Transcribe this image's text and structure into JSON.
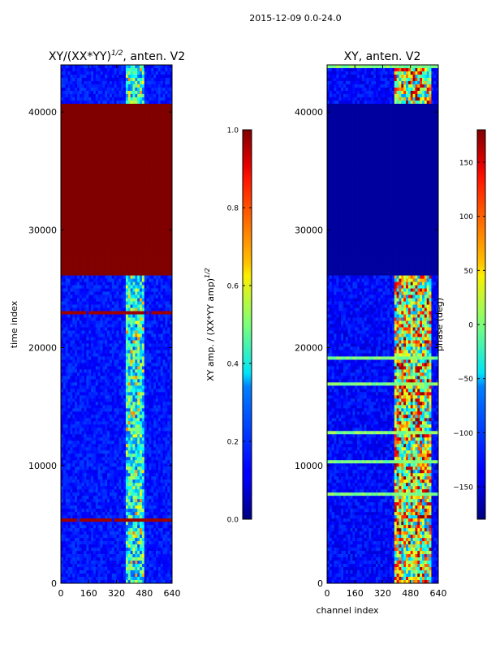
{
  "figure": {
    "suptitle": "2015-12-09 0.0-24.0"
  },
  "chart_data": [
    {
      "type": "heatmap",
      "title": "XY/(XX*YY)",
      "title_exponent": "1/2",
      "title_suffix": ", anten. V2",
      "xlabel": "",
      "ylabel": "time index",
      "xlim": [
        0,
        640
      ],
      "ylim": [
        0,
        44000
      ],
      "xticks": [
        0,
        160,
        320,
        480,
        640
      ],
      "yticks": [
        0,
        10000,
        20000,
        30000,
        40000
      ],
      "colorbar": {
        "label": "XY amp. / (XX*YY amp)",
        "label_exponent": "1/2",
        "range": [
          0.0,
          1.0
        ],
        "ticks": [
          "0.0",
          "0.2",
          "0.4",
          "0.6",
          "0.8",
          "1.0"
        ],
        "colormap": "jet"
      },
      "saturated_block": [
        26200,
        40600
      ],
      "active_channel_band": [
        380,
        480
      ],
      "notes": "background low (~0.1); channels ~380-480 show high values; rows 26200-40600 saturated at 1.0"
    },
    {
      "type": "heatmap",
      "title": "XY, anten. V2",
      "xlabel": "channel index",
      "ylabel": "",
      "xlim": [
        0,
        640
      ],
      "ylim": [
        0,
        44000
      ],
      "xticks": [
        0,
        160,
        320,
        480,
        640
      ],
      "yticks": [
        0,
        10000,
        20000,
        30000,
        40000
      ],
      "colorbar": {
        "label": "phase (deg)",
        "range": [
          -180,
          180
        ],
        "ticks": [
          "−150",
          "−100",
          "−50",
          "0",
          "50",
          "100",
          "150"
        ],
        "colormap": "jet"
      },
      "flat_block": [
        26200,
        40600
      ],
      "active_channel_band": [
        390,
        600
      ],
      "notes": "background deep blue; channels ~400-600 show strong phase structure; rows 26200-40600 flat"
    }
  ]
}
